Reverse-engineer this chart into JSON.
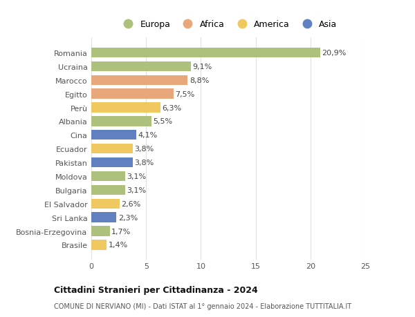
{
  "countries": [
    "Romania",
    "Ucraina",
    "Marocco",
    "Egitto",
    "Perù",
    "Albania",
    "Cina",
    "Ecuador",
    "Pakistan",
    "Moldova",
    "Bulgaria",
    "El Salvador",
    "Sri Lanka",
    "Bosnia-Erzegovina",
    "Brasile"
  ],
  "values": [
    20.9,
    9.1,
    8.8,
    7.5,
    6.3,
    5.5,
    4.1,
    3.8,
    3.8,
    3.1,
    3.1,
    2.6,
    2.3,
    1.7,
    1.4
  ],
  "labels": [
    "20,9%",
    "9,1%",
    "8,8%",
    "7,5%",
    "6,3%",
    "5,5%",
    "4,1%",
    "3,8%",
    "3,8%",
    "3,1%",
    "3,1%",
    "2,6%",
    "2,3%",
    "1,7%",
    "1,4%"
  ],
  "categories": [
    "Europa",
    "Europa",
    "Africa",
    "Africa",
    "America",
    "Europa",
    "Asia",
    "America",
    "Asia",
    "Europa",
    "Europa",
    "America",
    "Asia",
    "Europa",
    "America"
  ],
  "colors": {
    "Europa": "#adc17d",
    "Africa": "#e8a87c",
    "America": "#f0c860",
    "Asia": "#6080c0"
  },
  "title": "Cittadini Stranieri per Cittadinanza - 2024",
  "subtitle": "COMUNE DI NERVIANO (MI) - Dati ISTAT al 1° gennaio 2024 - Elaborazione TUTTITALIA.IT",
  "xlim": [
    0,
    25
  ],
  "xticks": [
    0,
    5,
    10,
    15,
    20,
    25
  ],
  "background_color": "#ffffff",
  "plot_bg_color": "#ffffff",
  "grid_color": "#e0e0e0"
}
